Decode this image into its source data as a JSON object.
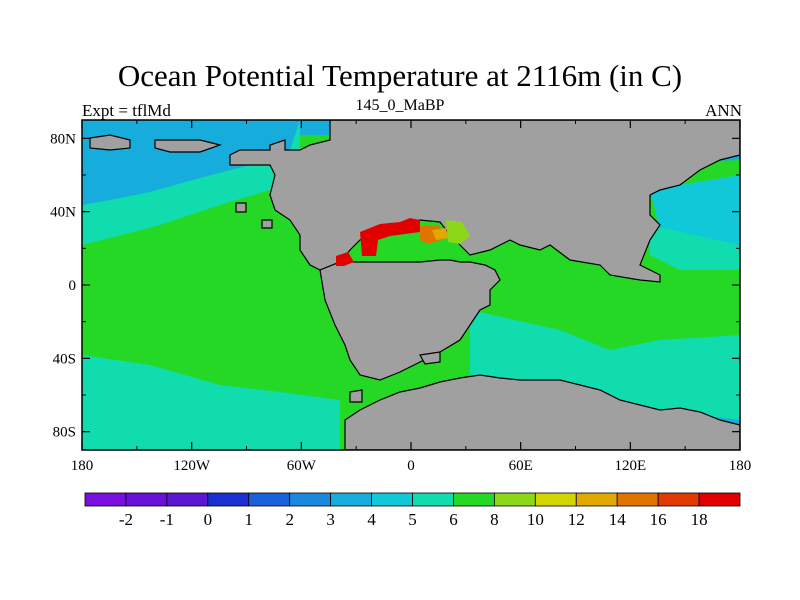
{
  "title": "Ocean Potential Temperature at 2116m (in C)",
  "left_string": "Expt = tflMd",
  "center_string": "145_0_MaBP",
  "right_string": "ANN",
  "map": {
    "projection": "cylindrical-equidistant",
    "lon_range": [
      -180,
      180
    ],
    "lat_range": [
      -90,
      90
    ],
    "land_color": "#a0a0a0",
    "coastline_color": "#000000",
    "x_ticks": [
      {
        "lon": -180,
        "label": "180"
      },
      {
        "lon": -120,
        "label": "120W"
      },
      {
        "lon": -60,
        "label": "60W"
      },
      {
        "lon": 0,
        "label": "0"
      },
      {
        "lon": 60,
        "label": "60E"
      },
      {
        "lon": 120,
        "label": "120E"
      },
      {
        "lon": 180,
        "label": "180"
      }
    ],
    "y_ticks": [
      {
        "lat": 80,
        "label": "80N"
      },
      {
        "lat": 40,
        "label": "40N"
      },
      {
        "lat": 0,
        "label": "0"
      },
      {
        "lat": -40,
        "label": "40S"
      },
      {
        "lat": -80,
        "label": "80S"
      }
    ]
  },
  "colorbar": {
    "colors": [
      "#7a10e0",
      "#6a10d8",
      "#5a18d0",
      "#1a30d0",
      "#1a60d8",
      "#1a88dc",
      "#16acdc",
      "#10c8d8",
      "#10dcae",
      "#26d826",
      "#8cd818",
      "#d4d400",
      "#e0a800",
      "#e07400",
      "#e03a00",
      "#e00000"
    ],
    "labels": [
      "-2",
      "-1",
      "0",
      "1",
      "2",
      "3",
      "4",
      "5",
      "6",
      "8",
      "10",
      "12",
      "14",
      "16",
      "18"
    ]
  }
}
